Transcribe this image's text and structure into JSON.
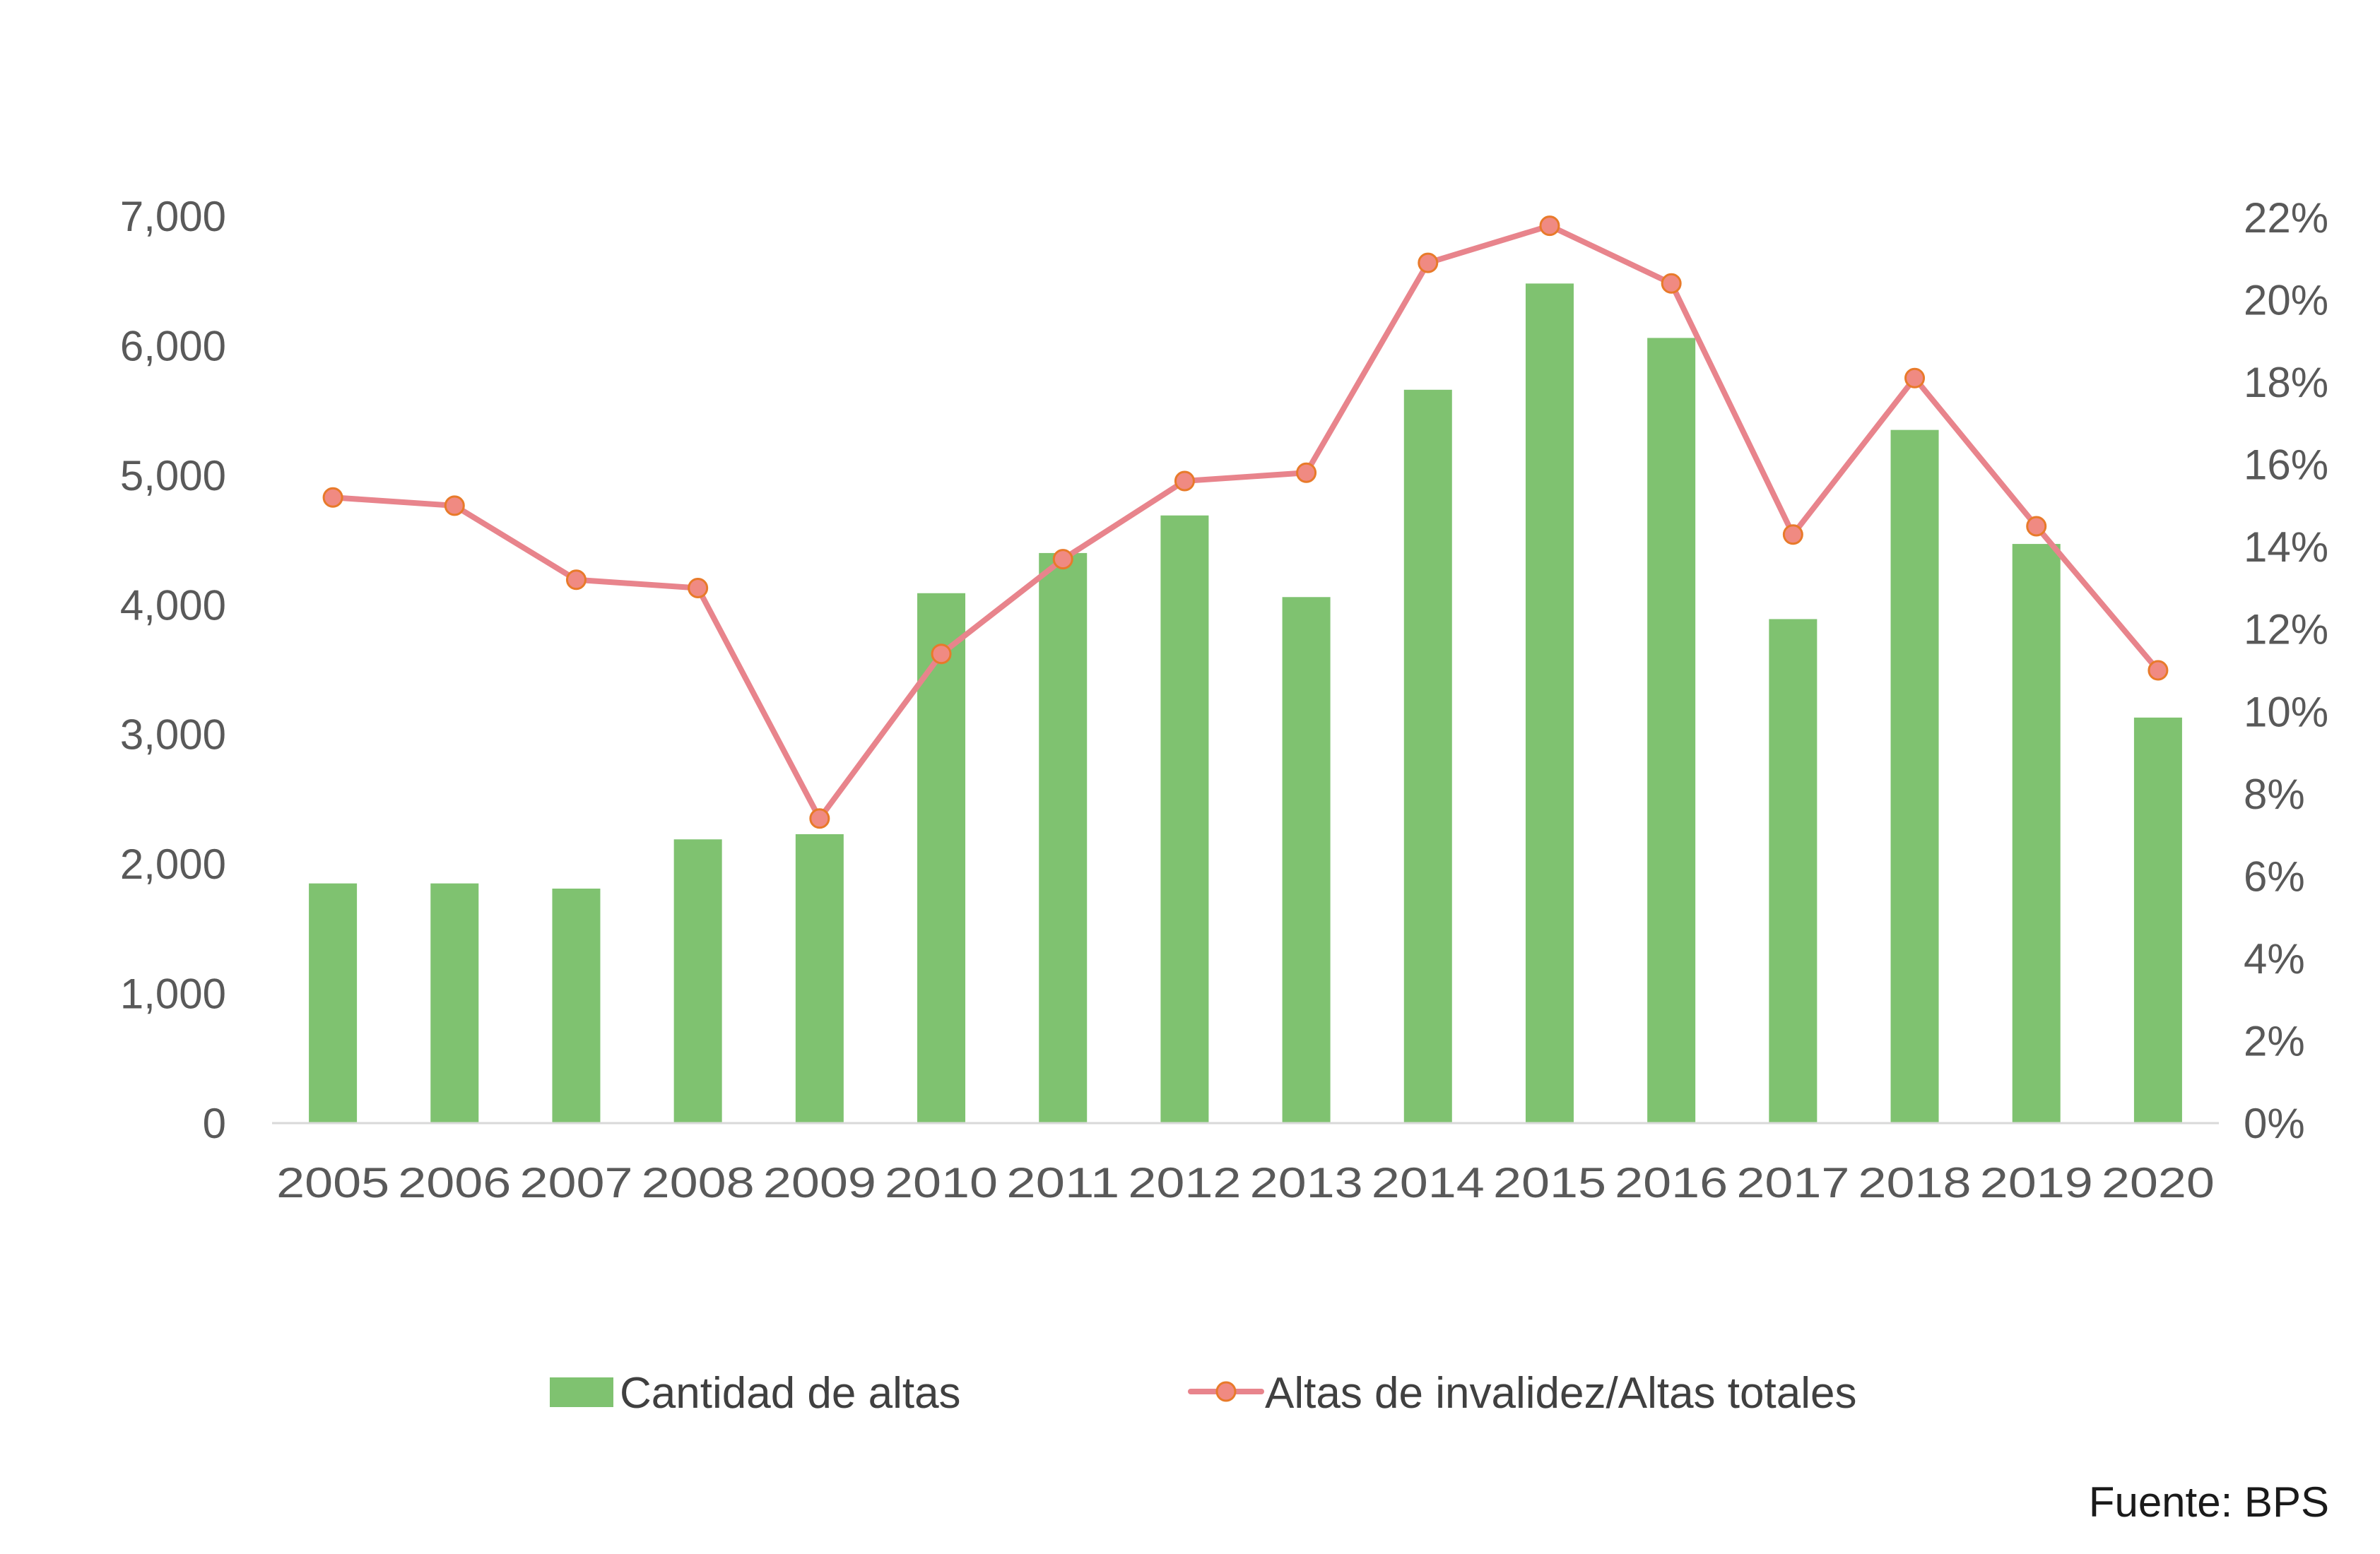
{
  "chart_data": {
    "type": "bar",
    "categories": [
      "2005",
      "2006",
      "2007",
      "2008",
      "2009",
      "2010",
      "2011",
      "2012",
      "2013",
      "2014",
      "2015",
      "2016",
      "2017",
      "2018",
      "2019",
      "2020"
    ],
    "series": [
      {
        "name": "Cantidad de altas",
        "type": "bar",
        "axis": "left",
        "color": "#7fc270",
        "values": [
          1850,
          1850,
          1810,
          2190,
          2230,
          4090,
          4400,
          4690,
          4060,
          5660,
          6480,
          6060,
          3890,
          5350,
          4470,
          3130
        ]
      },
      {
        "name": "Altas de invalidez/Altas totales",
        "type": "line",
        "axis": "right",
        "color": "#e8848c",
        "marker_fill": "#f08a82",
        "marker_stroke": "#e87a2a",
        "values": [
          0.152,
          0.15,
          0.132,
          0.13,
          0.074,
          0.114,
          0.137,
          0.156,
          0.158,
          0.209,
          0.218,
          0.204,
          0.143,
          0.181,
          0.145,
          0.11
        ]
      }
    ],
    "y_left": {
      "ylim": [
        0,
        7000
      ],
      "ticks": [
        0,
        1000,
        2000,
        3000,
        4000,
        5000,
        6000,
        7000
      ],
      "tick_labels": [
        "0",
        "1,000",
        "2,000",
        "3,000",
        "4,000",
        "5,000",
        "6,000",
        "7,000"
      ]
    },
    "y_right": {
      "ylim": [
        0,
        0.22
      ],
      "ticks": [
        0,
        0.02,
        0.04,
        0.06,
        0.08,
        0.1,
        0.12,
        0.14,
        0.16,
        0.18,
        0.2,
        0.22
      ],
      "tick_labels": [
        "0%",
        "2%",
        "4%",
        "6%",
        "8%",
        "10%",
        "12%",
        "14%",
        "16%",
        "18%",
        "20%",
        "22%"
      ]
    },
    "legend": "bottom",
    "grid": false,
    "source": "Fuente: BPS"
  }
}
